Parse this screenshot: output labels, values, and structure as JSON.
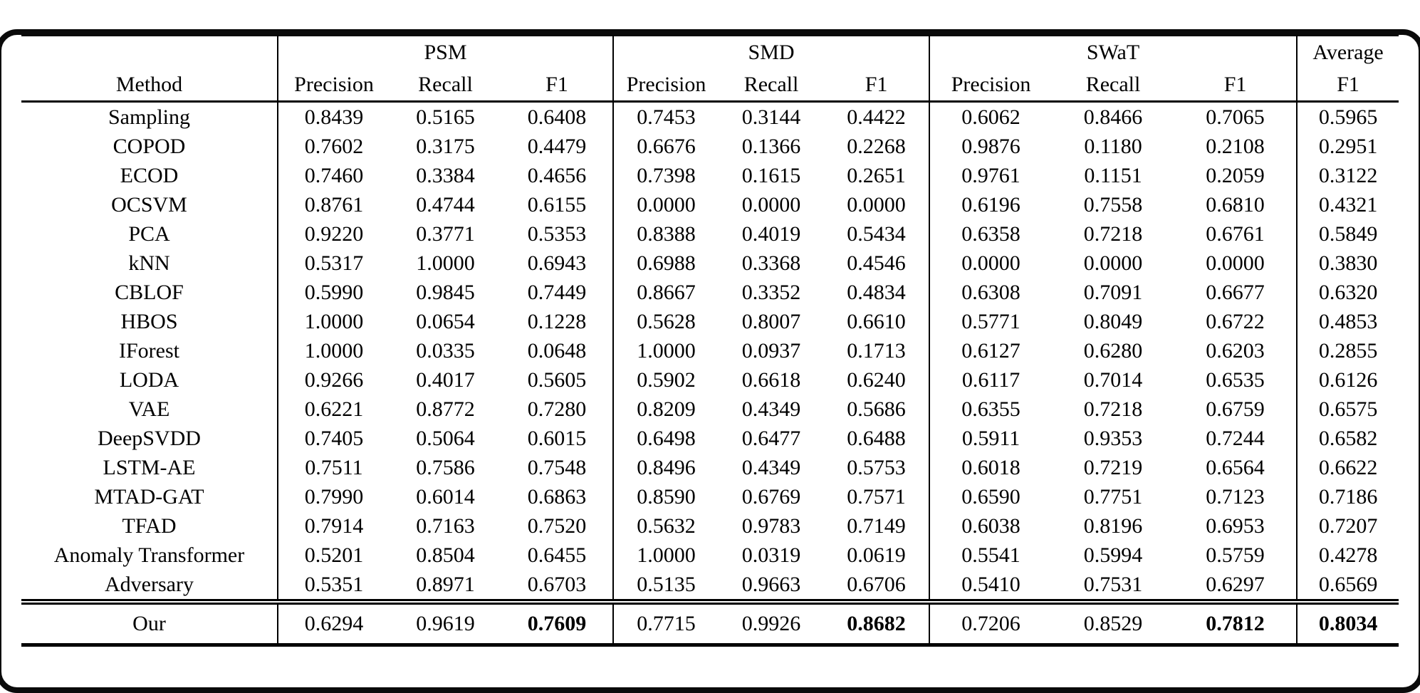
{
  "page": {
    "background": "#ffffff",
    "frame_border_color": "#0a0a0a",
    "text_color": "#000000"
  },
  "chart_data": {
    "type": "table",
    "header": {
      "method_label": "Method",
      "groups": [
        {
          "label": "PSM",
          "metrics": [
            "Precision",
            "Recall",
            "F1"
          ]
        },
        {
          "label": "SMD",
          "metrics": [
            "Precision",
            "Recall",
            "F1"
          ]
        },
        {
          "label": "SWaT",
          "metrics": [
            "Precision",
            "Recall",
            "F1"
          ]
        },
        {
          "label": "Average",
          "metrics": [
            "F1"
          ]
        }
      ]
    },
    "rows": [
      {
        "method": "Sampling",
        "values": [
          "0.8439",
          "0.5165",
          "0.6408",
          "0.7453",
          "0.3144",
          "0.4422",
          "0.6062",
          "0.8466",
          "0.7065",
          "0.5965"
        ]
      },
      {
        "method": "COPOD",
        "values": [
          "0.7602",
          "0.3175",
          "0.4479",
          "0.6676",
          "0.1366",
          "0.2268",
          "0.9876",
          "0.1180",
          "0.2108",
          "0.2951"
        ]
      },
      {
        "method": "ECOD",
        "values": [
          "0.7460",
          "0.3384",
          "0.4656",
          "0.7398",
          "0.1615",
          "0.2651",
          "0.9761",
          "0.1151",
          "0.2059",
          "0.3122"
        ]
      },
      {
        "method": "OCSVM",
        "values": [
          "0.8761",
          "0.4744",
          "0.6155",
          "0.0000",
          "0.0000",
          "0.0000",
          "0.6196",
          "0.7558",
          "0.6810",
          "0.4321"
        ]
      },
      {
        "method": "PCA",
        "values": [
          "0.9220",
          "0.3771",
          "0.5353",
          "0.8388",
          "0.4019",
          "0.5434",
          "0.6358",
          "0.7218",
          "0.6761",
          "0.5849"
        ]
      },
      {
        "method": "kNN",
        "values": [
          "0.5317",
          "1.0000",
          "0.6943",
          "0.6988",
          "0.3368",
          "0.4546",
          "0.0000",
          "0.0000",
          "0.0000",
          "0.3830"
        ]
      },
      {
        "method": "CBLOF",
        "values": [
          "0.5990",
          "0.9845",
          "0.7449",
          "0.8667",
          "0.3352",
          "0.4834",
          "0.6308",
          "0.7091",
          "0.6677",
          "0.6320"
        ]
      },
      {
        "method": "HBOS",
        "values": [
          "1.0000",
          "0.0654",
          "0.1228",
          "0.5628",
          "0.8007",
          "0.6610",
          "0.5771",
          "0.8049",
          "0.6722",
          "0.4853"
        ]
      },
      {
        "method": "IForest",
        "values": [
          "1.0000",
          "0.0335",
          "0.0648",
          "1.0000",
          "0.0937",
          "0.1713",
          "0.6127",
          "0.6280",
          "0.6203",
          "0.2855"
        ]
      },
      {
        "method": "LODA",
        "values": [
          "0.9266",
          "0.4017",
          "0.5605",
          "0.5902",
          "0.6618",
          "0.6240",
          "0.6117",
          "0.7014",
          "0.6535",
          "0.6126"
        ]
      },
      {
        "method": "VAE",
        "values": [
          "0.6221",
          "0.8772",
          "0.7280",
          "0.8209",
          "0.4349",
          "0.5686",
          "0.6355",
          "0.7218",
          "0.6759",
          "0.6575"
        ]
      },
      {
        "method": "DeepSVDD",
        "values": [
          "0.7405",
          "0.5064",
          "0.6015",
          "0.6498",
          "0.6477",
          "0.6488",
          "0.5911",
          "0.9353",
          "0.7244",
          "0.6582"
        ]
      },
      {
        "method": "LSTM-AE",
        "values": [
          "0.7511",
          "0.7586",
          "0.7548",
          "0.8496",
          "0.4349",
          "0.5753",
          "0.6018",
          "0.7219",
          "0.6564",
          "0.6622"
        ]
      },
      {
        "method": "MTAD-GAT",
        "values": [
          "0.7990",
          "0.6014",
          "0.6863",
          "0.8590",
          "0.6769",
          "0.7571",
          "0.6590",
          "0.7751",
          "0.7123",
          "0.7186"
        ]
      },
      {
        "method": "TFAD",
        "values": [
          "0.7914",
          "0.7163",
          "0.7520",
          "0.5632",
          "0.9783",
          "0.7149",
          "0.6038",
          "0.8196",
          "0.6953",
          "0.7207"
        ]
      },
      {
        "method": "Anomaly Transformer",
        "values": [
          "0.5201",
          "0.8504",
          "0.6455",
          "1.0000",
          "0.0319",
          "0.0619",
          "0.5541",
          "0.5994",
          "0.5759",
          "0.4278"
        ]
      },
      {
        "method": "Adversary",
        "values": [
          "0.5351",
          "0.8971",
          "0.6703",
          "0.5135",
          "0.9663",
          "0.6706",
          "0.5410",
          "0.7531",
          "0.6297",
          "0.6569"
        ]
      }
    ],
    "highlight_row": {
      "method": "Our",
      "values": [
        "0.6294",
        "0.9619",
        "0.7609",
        "0.7715",
        "0.9926",
        "0.8682",
        "0.7206",
        "0.8529",
        "0.7812",
        "0.8034"
      ],
      "bold_value_indices": [
        2,
        5,
        8,
        9
      ]
    }
  }
}
